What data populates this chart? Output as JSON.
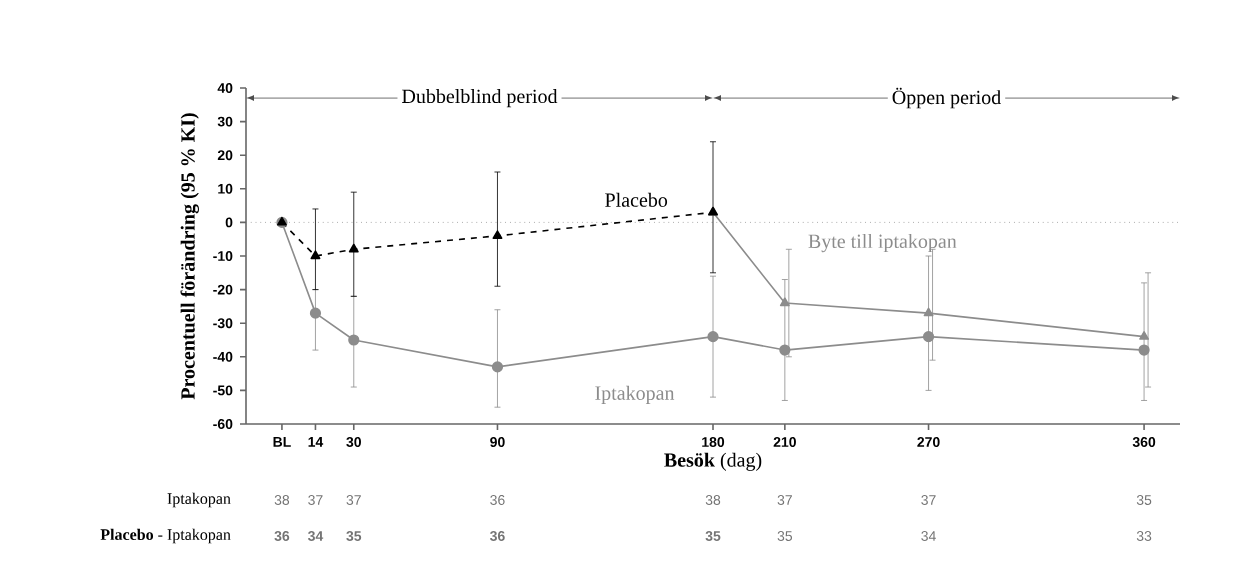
{
  "chart_data": {
    "type": "line",
    "xlabel": "**Besök** (dag)",
    "ylabel": "Procentuell förändring (95 % KI)",
    "xlim": [
      -15,
      375
    ],
    "ylim": [
      -60,
      40
    ],
    "xticks": [
      {
        "value": 0,
        "label": "BL"
      },
      14,
      30,
      90,
      180,
      210,
      270,
      360
    ],
    "yticks": [
      -60,
      -50,
      -40,
      -30,
      -20,
      -10,
      0,
      10,
      20,
      30,
      40
    ],
    "grid": false,
    "ref_lines": [
      {
        "axis": "y",
        "value": 0,
        "line_style": "dotted",
        "color": "#808080"
      }
    ],
    "series": [
      {
        "name": "Iptakopan",
        "color": "#8c8c8c",
        "marker": "circle",
        "line_style": "solid",
        "x": [
          0,
          14,
          30,
          90,
          180,
          210,
          270,
          360
        ],
        "values": [
          0,
          -27,
          -35,
          -43,
          -34,
          -38,
          -34,
          -38
        ],
        "errors": [
          null,
          [
            -38,
            -20
          ],
          [
            -49,
            -22
          ],
          [
            -55,
            -26
          ],
          [
            -52,
            -16
          ],
          [
            -53,
            -17
          ],
          [
            -50,
            -10
          ],
          [
            -53,
            -18
          ]
        ]
      },
      {
        "name": "Placebo",
        "color": "#000000",
        "marker": "triangle",
        "line_style": "dashed",
        "x": [
          0,
          14,
          30,
          90,
          180
        ],
        "values": [
          0,
          -10,
          -8,
          -4,
          3
        ],
        "errors": [
          null,
          [
            -20,
            4
          ],
          [
            -22,
            9
          ],
          [
            -19,
            15
          ],
          [
            -15,
            24
          ]
        ]
      },
      {
        "name": "Byte till iptakopan",
        "color": "#8c8c8c",
        "marker": "triangle",
        "line_style": "solid",
        "x": [
          180,
          210,
          270,
          360
        ],
        "values": [
          3,
          -24,
          -27,
          -34
        ],
        "errors": [
          null,
          [
            -40,
            -8
          ],
          [
            -41,
            -8
          ],
          [
            -49,
            -15
          ]
        ]
      }
    ],
    "annotations": [
      "Dubbelblind period",
      "Öppen period",
      "Iptakopan",
      "38",
      "37",
      "37",
      "36",
      "38",
      "37",
      "37",
      "35",
      "**Placebo** - Iptakopan",
      "**36**",
      "**34**",
      "**35**",
      "**36**",
      "**35**",
      "35",
      "34",
      "33"
    ]
  }
}
